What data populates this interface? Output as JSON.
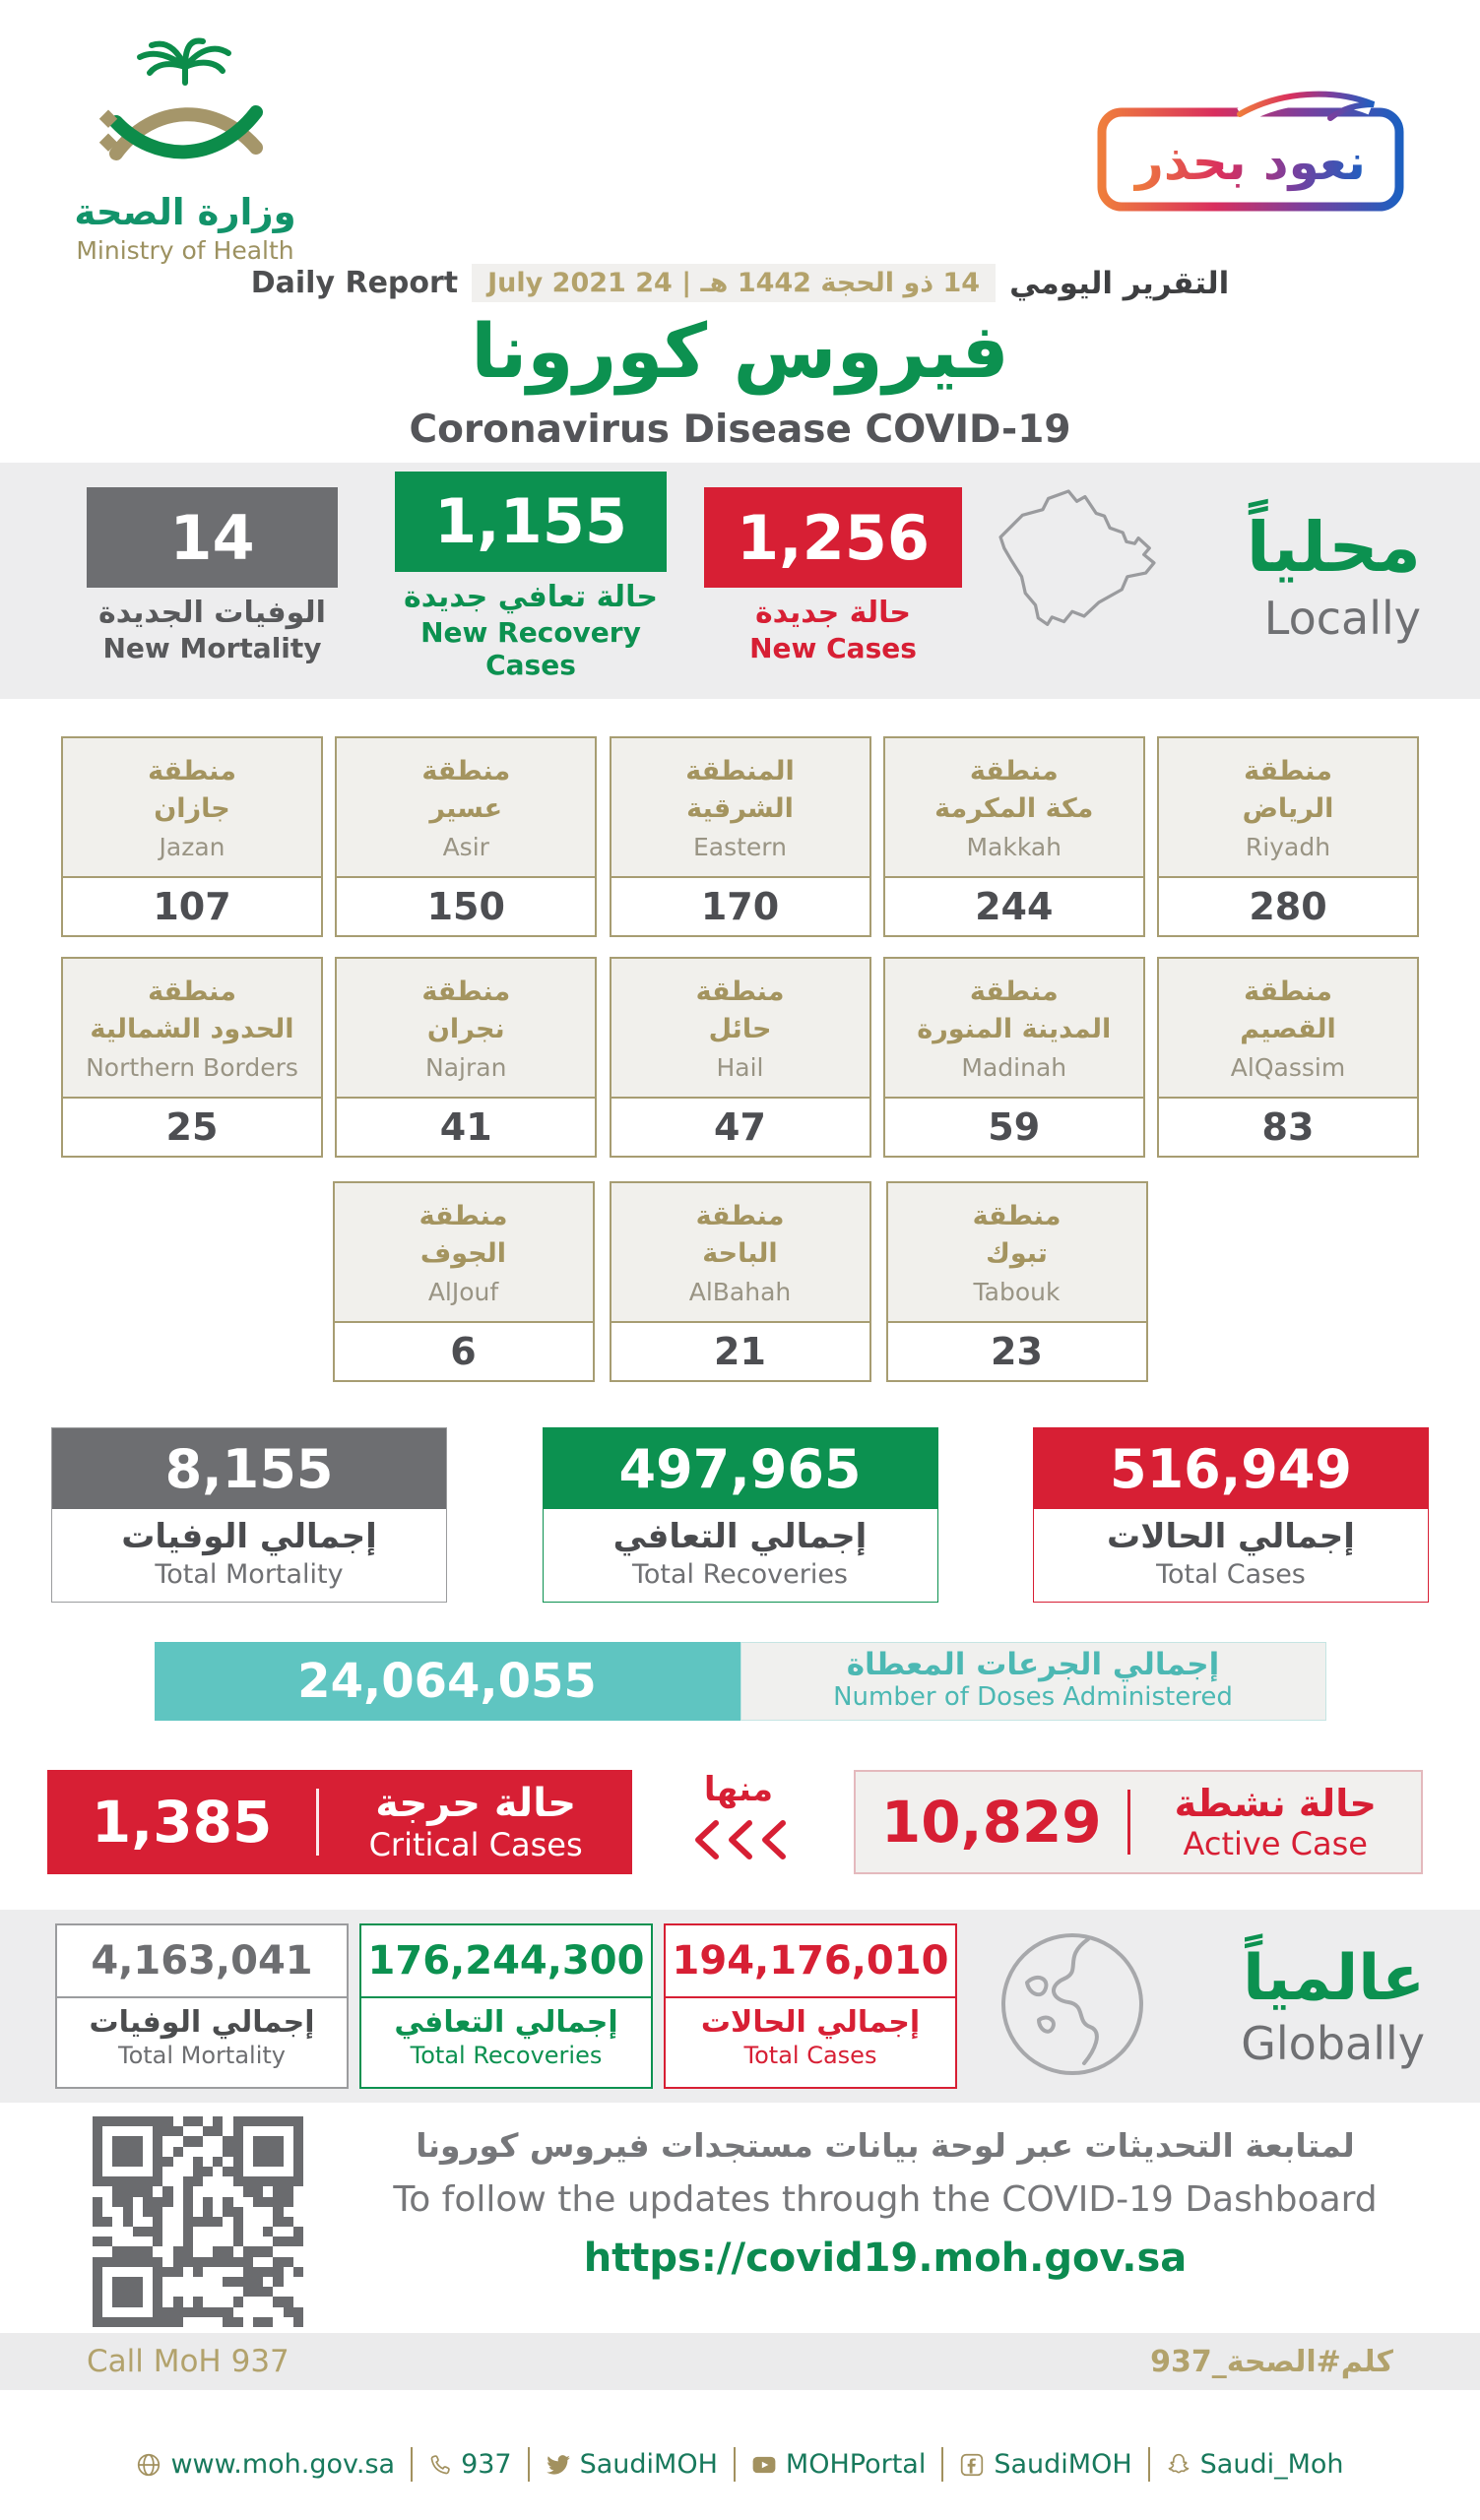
{
  "colors": {
    "green": "#0C9150",
    "red": "#D71F34",
    "gray": "#6D6E71",
    "gold": "#A4945F",
    "teal": "#5FC5C1",
    "band": "#EDEDEE"
  },
  "header": {
    "logo_ar": "وزارة الصحة",
    "logo_en": "Ministry of Health",
    "badge": "نعود بحذر",
    "daily_report_en": "Daily Report",
    "date": "14 ذو الحجة 1442 هـ | 24 July 2021",
    "daily_report_ar": "التقرير اليومي",
    "title_ar": "فيروس كورونا",
    "title_en": "Coronavirus Disease COVID-19"
  },
  "locally": {
    "word_ar": "محلياً",
    "word_en": "Locally",
    "new_mortality": {
      "value": "14",
      "ar": "الوفيات الجديدة",
      "en": "New Mortality"
    },
    "new_recoveries": {
      "value": "1,155",
      "ar": "حالة تعافي جديدة",
      "en": "New Recovery Cases"
    },
    "new_cases": {
      "value": "1,256",
      "ar": "حالة جديدة",
      "en": "New Cases"
    }
  },
  "regions": {
    "row1": [
      {
        "a1": "منطقة",
        "a2": "جازان",
        "en": "Jazan",
        "value": "107"
      },
      {
        "a1": "منطقة",
        "a2": "عسير",
        "en": "Asir",
        "value": "150"
      },
      {
        "a1": "المنطقة",
        "a2": "الشرقية",
        "en": "Eastern",
        "value": "170"
      },
      {
        "a1": "منطقة",
        "a2": "مكة المكرمة",
        "en": "Makkah",
        "value": "244"
      },
      {
        "a1": "منطقة",
        "a2": "الرياض",
        "en": "Riyadh",
        "value": "280"
      }
    ],
    "row2": [
      {
        "a1": "منطقة",
        "a2": "الحدود الشمالية",
        "en": "Northern Borders",
        "value": "25"
      },
      {
        "a1": "منطقة",
        "a2": "نجران",
        "en": "Najran",
        "value": "41"
      },
      {
        "a1": "منطقة",
        "a2": "حائل",
        "en": "Hail",
        "value": "47"
      },
      {
        "a1": "منطقة",
        "a2": "المدينة المنورة",
        "en": "Madinah",
        "value": "59"
      },
      {
        "a1": "منطقة",
        "a2": "القصيم",
        "en": "AlQassim",
        "value": "83"
      }
    ],
    "row3": [
      {
        "a1": "منطقة",
        "a2": "الجوف",
        "en": "AlJouf",
        "value": "6"
      },
      {
        "a1": "منطقة",
        "a2": "الباحة",
        "en": "AlBahah",
        "value": "21"
      },
      {
        "a1": "منطقة",
        "a2": "تبوك",
        "en": "Tabouk",
        "value": "23"
      }
    ]
  },
  "totals": {
    "mortality": {
      "value": "8,155",
      "ar": "إجمالي الوفيات",
      "en": "Total Mortality"
    },
    "recoveries": {
      "value": "497,965",
      "ar": "إجمالي التعافي",
      "en": "Total Recoveries"
    },
    "cases": {
      "value": "516,949",
      "ar": "إجمالي الحالات",
      "en": "Total Cases"
    }
  },
  "doses": {
    "value": "24,064,055",
    "ar": "إجمالي الجرعات المعطاة",
    "en": "Number of Doses Administered"
  },
  "critical": {
    "value": "1,385",
    "ar": "حالة حرجة",
    "en": "Critical Cases"
  },
  "minha": "منها",
  "active": {
    "value": "10,829",
    "ar": "حالة نشطة",
    "en": "Active Case"
  },
  "globally": {
    "word_ar": "عالمياً",
    "word_en": "Globally",
    "mortality": {
      "value": "4,163,041",
      "ar": "إجمالي الوفيات",
      "en": "Total Mortality"
    },
    "recoveries": {
      "value": "176,244,300",
      "ar": "إجمالي التعافي",
      "en": "Total Recoveries"
    },
    "cases": {
      "value": "194,176,010",
      "ar": "إجمالي الحالات",
      "en": "Total Cases"
    }
  },
  "dashboard": {
    "ar": "لمتابعة التحديثات عبر لوحة بيانات مستجدات فيروس كورونا",
    "en": "To follow the updates through the COVID-19 Dashboard",
    "url": "https://covid19.moh.gov.sa"
  },
  "footer": {
    "call": "Call MoH 937",
    "hashtag": "كلم#الصحة_937",
    "links": [
      {
        "icon": "globe-icon",
        "label": "www.moh.gov.sa"
      },
      {
        "icon": "phone-icon",
        "label": "937"
      },
      {
        "icon": "twitter-icon",
        "label": "SaudiMOH"
      },
      {
        "icon": "youtube-icon",
        "label": "MOHPortal"
      },
      {
        "icon": "facebook-icon",
        "label": "SaudiMOH"
      },
      {
        "icon": "snapchat-icon",
        "label": "Saudi_Moh"
      }
    ]
  }
}
